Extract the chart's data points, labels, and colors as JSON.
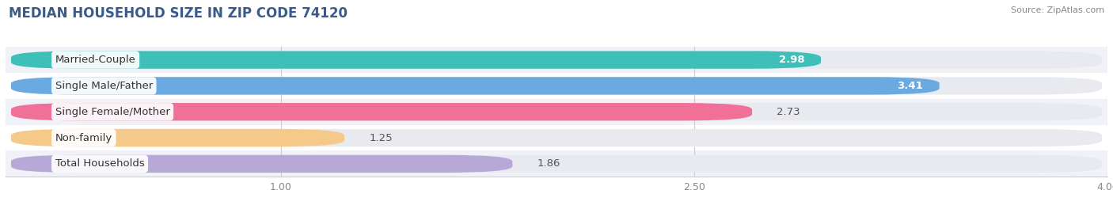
{
  "title": "MEDIAN HOUSEHOLD SIZE IN ZIP CODE 74120",
  "source": "Source: ZipAtlas.com",
  "categories": [
    "Married-Couple",
    "Single Male/Father",
    "Single Female/Mother",
    "Non-family",
    "Total Households"
  ],
  "values": [
    2.98,
    3.41,
    2.73,
    1.25,
    1.86
  ],
  "bar_colors": [
    "#3EBFB8",
    "#6AAAE0",
    "#F07098",
    "#F5C98A",
    "#B8A8D8"
  ],
  "bar_bg_color": "#e8eaf0",
  "row_bg_even": "#f0f2f7",
  "row_bg_odd": "#ffffff",
  "background_color": "#ffffff",
  "xlim": [
    0,
    4.0
  ],
  "xticks": [
    1.0,
    2.5,
    4.0
  ],
  "label_fontsize": 9.5,
  "value_fontsize": 9.5,
  "title_fontsize": 12,
  "title_color": "#3a5a8a",
  "value_inside_color": "#ffffff",
  "value_outside_color": "#555555",
  "label_text_color": "#333333"
}
